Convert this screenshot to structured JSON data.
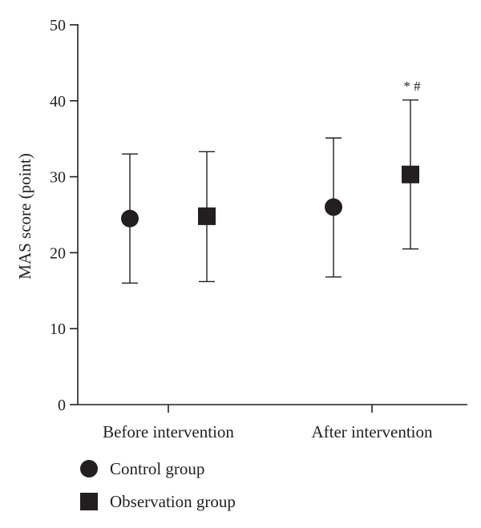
{
  "chart_data": {
    "type": "scatter",
    "variant": "mean-with-error-bars",
    "title": "",
    "ylabel": "MAS score (point)",
    "xlabel": "",
    "ylim": [
      0,
      50
    ],
    "yticks": [
      "0",
      "10",
      "20",
      "30",
      "40",
      "50"
    ],
    "categories": [
      "Before intervention",
      "After intervention"
    ],
    "grid": false,
    "legend_placement": "bottom-left",
    "series": [
      {
        "name": "Control group",
        "marker": "circle",
        "color": "#231f20",
        "values": [
          24.5,
          26.0
        ],
        "error_low": [
          16.0,
          16.8
        ],
        "error_high": [
          33.0,
          35.1
        ]
      },
      {
        "name": "Observation group",
        "marker": "square",
        "color": "#231f20",
        "values": [
          24.8,
          30.3
        ],
        "error_low": [
          16.2,
          20.5
        ],
        "error_high": [
          33.3,
          40.1
        ]
      }
    ],
    "annotations": [
      {
        "text": "* #",
        "series": "Observation group",
        "category": "After intervention"
      }
    ]
  }
}
